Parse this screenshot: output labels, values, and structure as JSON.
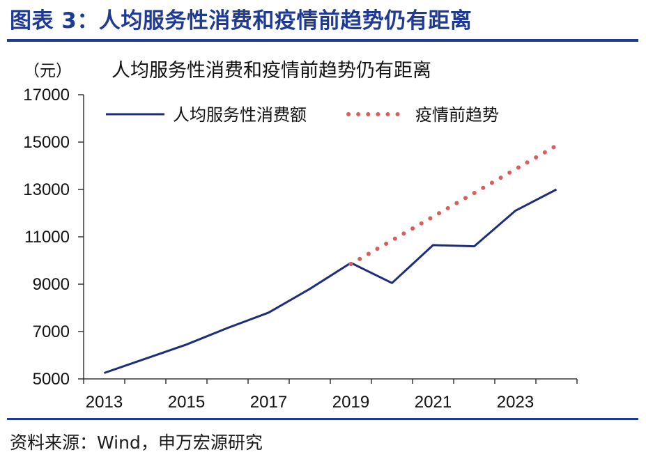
{
  "figure_label": "图表 3：人均服务性消费和疫情前趋势仍有距离",
  "source": "资料来源：Wind，申万宏源研究",
  "colors": {
    "accent": "#1f3a93",
    "actual_line": "#1c2d7c",
    "trend_line": "#d95f5f"
  },
  "chart_data": {
    "type": "line",
    "title": "人均服务性消费和疫情前趋势仍有距离",
    "ylabel": "（元）",
    "xlabel": "",
    "ylim": [
      5000,
      17000
    ],
    "yticks": [
      5000,
      7000,
      9000,
      11000,
      13000,
      15000,
      17000
    ],
    "xticks": [
      "2013",
      "2015",
      "2017",
      "2019",
      "2021",
      "2023"
    ],
    "xlim": [
      2012.5,
      2024.5
    ],
    "legend_position": "top-left",
    "series": [
      {
        "name": "人均服务性消费额",
        "style": "solid",
        "x": [
          2013,
          2014,
          2015,
          2016,
          2017,
          2018,
          2019,
          2020,
          2021,
          2022,
          2023,
          2024
        ],
        "values": [
          5250,
          5850,
          6450,
          7150,
          7800,
          8800,
          9900,
          9050,
          10650,
          10600,
          12100,
          13000
        ]
      },
      {
        "name": "疫情前趋势",
        "style": "dotted",
        "x": [
          2019,
          2024
        ],
        "values": [
          9850,
          14850
        ]
      }
    ]
  }
}
